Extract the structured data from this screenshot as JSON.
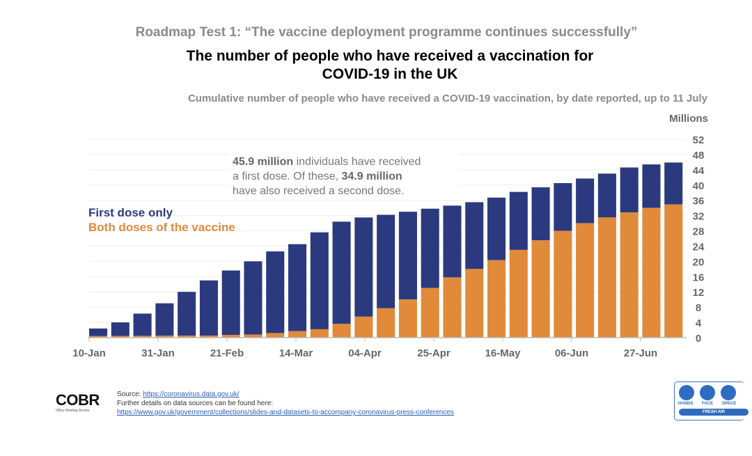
{
  "header": {
    "kicker": "Roadmap Test 1: “The vaccine deployment programme continues successfully”",
    "title_line1": "The number of people who have received a vaccination for",
    "title_line2": "COVID-19 in the UK",
    "subtitle": "Cumulative number of people who have received a COVID-19 vaccination, by date reported, up to 11 July"
  },
  "annotation": {
    "first_bold": "45.9 million",
    "first_rest": " individuals have received",
    "line2_pre": "a first dose. Of these, ",
    "second_bold": "34.9 million",
    "line3": "have also received a second dose."
  },
  "chart_data": {
    "type": "bar",
    "stacked": true,
    "ylabel": "Millions",
    "ylim": [
      0,
      52
    ],
    "yticks": [
      0,
      4,
      8,
      12,
      16,
      20,
      24,
      28,
      32,
      36,
      40,
      44,
      48,
      52
    ],
    "xtick_labels": [
      "10-Jan",
      "31-Jan",
      "21-Feb",
      "14-Mar",
      "04-Apr",
      "25-Apr",
      "16-May",
      "06-Jun",
      "27-Jun"
    ],
    "grid": true,
    "legend_placement": "left",
    "categories": [
      "10-Jan",
      "17-Jan",
      "24-Jan",
      "31-Jan",
      "07-Feb",
      "14-Feb",
      "21-Feb",
      "28-Feb",
      "07-Mar",
      "14-Mar",
      "21-Mar",
      "28-Mar",
      "04-Apr",
      "11-Apr",
      "18-Apr",
      "25-Apr",
      "02-May",
      "09-May",
      "16-May",
      "23-May",
      "30-May",
      "06-Jun",
      "13-Jun",
      "20-Jun",
      "27-Jun",
      "04-Jul",
      "11-Jul"
    ],
    "series": [
      {
        "name": "Both doses of the vaccine",
        "color": "#e08a3a",
        "values": [
          0.4,
          0.45,
          0.47,
          0.5,
          0.52,
          0.55,
          0.7,
          0.8,
          1.2,
          1.7,
          2.2,
          3.6,
          5.5,
          7.7,
          10.0,
          13.0,
          15.8,
          18.0,
          20.3,
          23.0,
          25.5,
          28.0,
          30.0,
          31.5,
          32.8,
          34.0,
          34.9
        ]
      },
      {
        "name": "First dose only",
        "color": "#2b3a7e",
        "total_first_dose": [
          2.4,
          4.0,
          6.3,
          9.0,
          12.0,
          15.0,
          17.6,
          20.0,
          22.6,
          24.5,
          27.6,
          30.4,
          31.5,
          32.2,
          33.0,
          33.8,
          34.6,
          35.5,
          36.7,
          38.2,
          39.4,
          40.5,
          41.7,
          43.0,
          44.6,
          45.4,
          45.9
        ]
      }
    ]
  },
  "footer": {
    "source_label": "Source: ",
    "source_url": "https://coronavirus.data.gov.uk/",
    "further": "Further details on data sources can be found here:",
    "further_url": "https://www.gov.uk/government/collections/slides-and-datasets-to-accompany-coronavirus-press-conferences",
    "logo": "COBR",
    "logo_sub": "Office Briefing Rooms",
    "hfs_labels": [
      "HANDS",
      "FACE",
      "SPACE"
    ],
    "hfs_bar": "FRESH AIR"
  }
}
